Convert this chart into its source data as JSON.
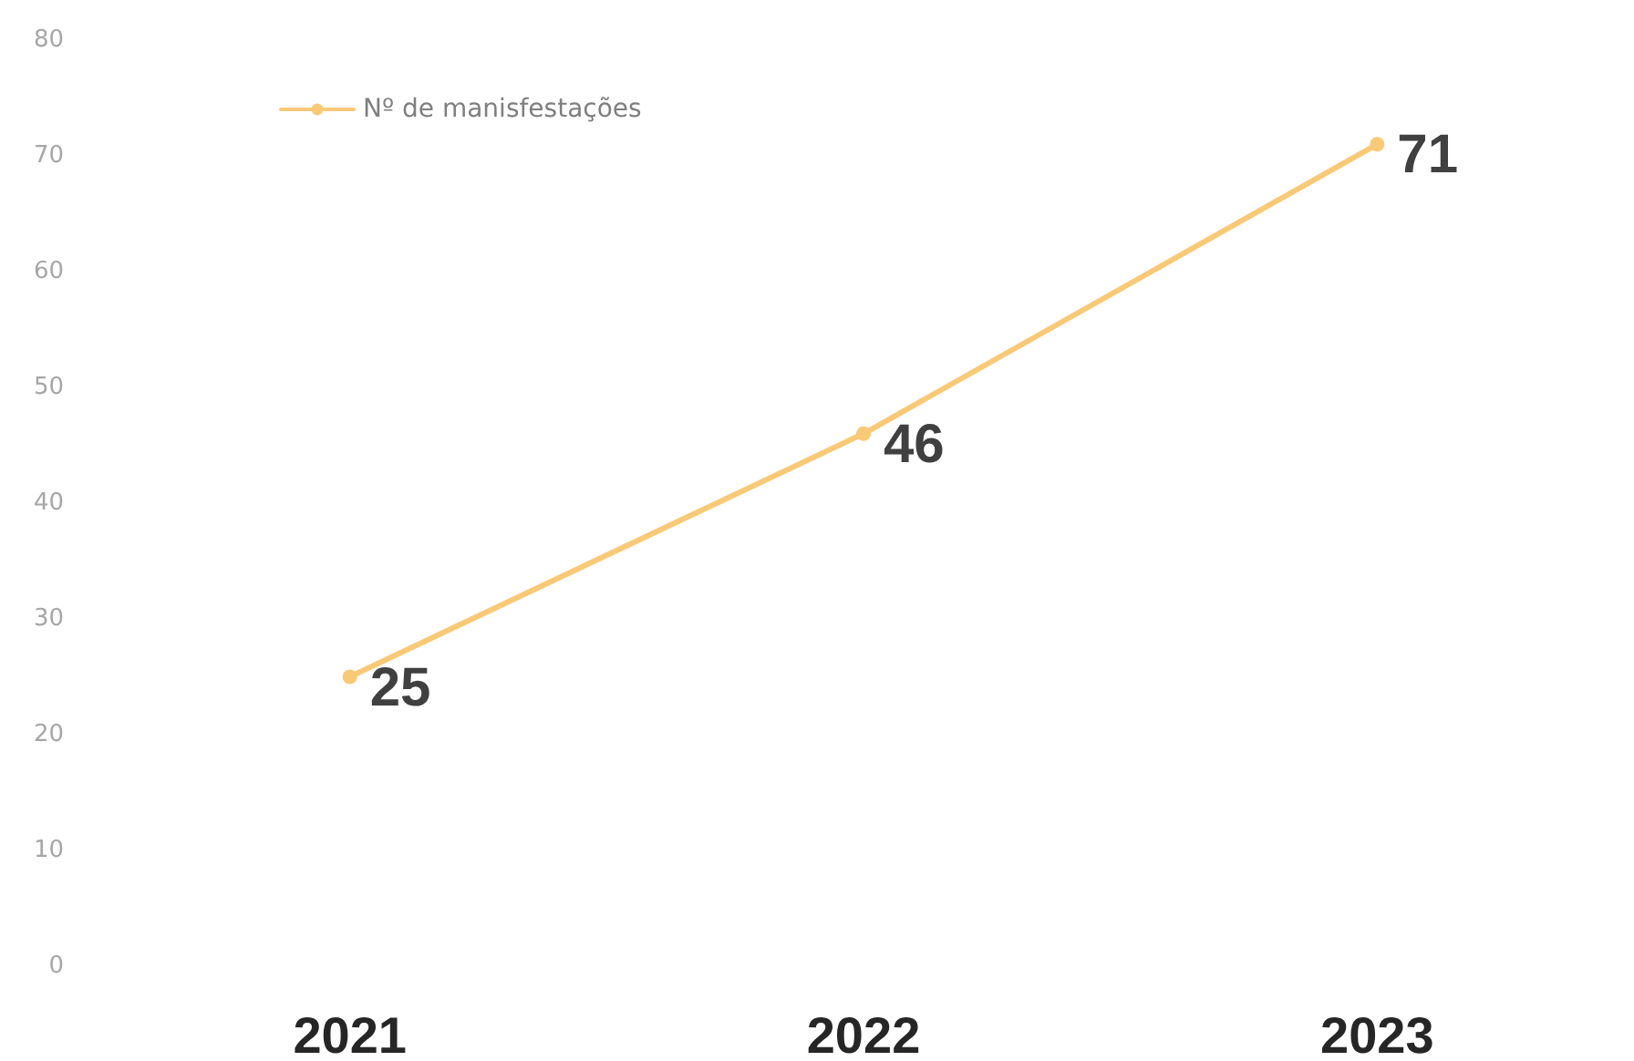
{
  "chart_data": {
    "type": "line",
    "categories": [
      "2021",
      "2022",
      "2023"
    ],
    "series": [
      {
        "name": "Nº de manisfestações",
        "color": "#f9c977",
        "values": [
          25,
          46,
          71
        ]
      }
    ],
    "ylim": [
      0,
      80
    ],
    "yticks": [
      0,
      10,
      20,
      30,
      40,
      50,
      60,
      70,
      80
    ],
    "grid": false,
    "legend": "top left",
    "marker": "circle",
    "line_style": "solid",
    "data_labels": true
  }
}
